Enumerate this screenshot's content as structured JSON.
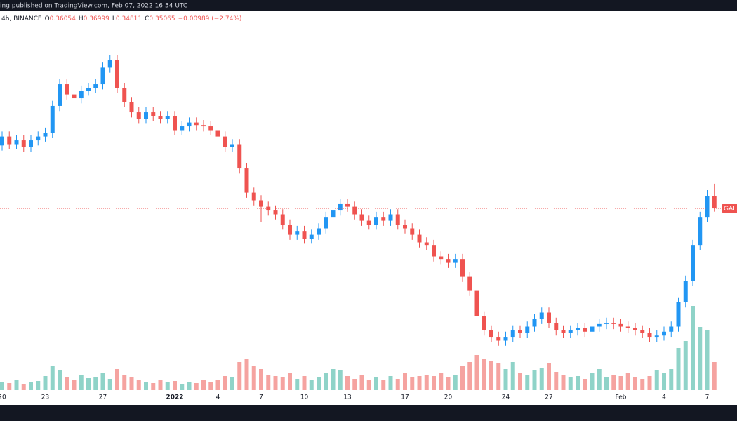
{
  "header": {
    "published": "ing published on TradingView.com, Feb 07, 2022 16:54 UTC",
    "interval_exchange": "4h, BINANCE",
    "change": "−0.00989 (−2.74%)"
  },
  "chart_data": {
    "type": "candlestick",
    "categories": [
      "20",
      null,
      null,
      null,
      null,
      null,
      "23",
      null,
      null,
      null,
      null,
      null,
      null,
      null,
      "27",
      null,
      null,
      null,
      null,
      null,
      null,
      null,
      null,
      null,
      "2022",
      null,
      null,
      null,
      null,
      null,
      "4",
      null,
      null,
      null,
      null,
      null,
      "7",
      null,
      null,
      null,
      null,
      null,
      "10",
      null,
      null,
      null,
      null,
      null,
      "13",
      null,
      null,
      null,
      null,
      null,
      null,
      null,
      "17",
      null,
      null,
      null,
      null,
      null,
      "20",
      null,
      null,
      null,
      null,
      null,
      null,
      null,
      "24",
      null,
      null,
      null,
      null,
      null,
      "27",
      null,
      null,
      null,
      null,
      null,
      null,
      null,
      null,
      null,
      "Feb",
      null,
      null,
      null,
      null,
      null,
      "4",
      null,
      null,
      null,
      null,
      null,
      "7",
      null
    ],
    "open": [
      0.4,
      0.407,
      0.401,
      0.404,
      0.399,
      0.404,
      0.407,
      0.41,
      0.431,
      0.448,
      0.44,
      0.437,
      0.443,
      0.445,
      0.448,
      0.461,
      0.467,
      0.445,
      0.434,
      0.426,
      0.421,
      0.426,
      0.423,
      0.421,
      0.423,
      0.412,
      0.415,
      0.418,
      0.416,
      0.415,
      0.412,
      0.407,
      0.399,
      0.401,
      0.382,
      0.363,
      0.357,
      0.352,
      0.349,
      0.346,
      0.338,
      0.33,
      0.333,
      0.327,
      0.33,
      0.335,
      0.344,
      0.349,
      0.354,
      0.352,
      0.346,
      0.341,
      0.338,
      0.344,
      0.341,
      0.346,
      0.338,
      0.335,
      0.33,
      0.324,
      0.322,
      0.313,
      0.311,
      0.308,
      0.311,
      0.297,
      0.286,
      0.266,
      0.255,
      0.25,
      0.247,
      0.25,
      0.255,
      0.253,
      0.258,
      0.264,
      0.269,
      0.261,
      0.255,
      0.253,
      0.255,
      0.257,
      0.254,
      0.258,
      0.26,
      0.261,
      0.26,
      0.258,
      0.257,
      0.255,
      0.253,
      0.25,
      0.251,
      0.254,
      0.258,
      0.277,
      0.294,
      0.322,
      0.344,
      0.36054
    ],
    "high": [
      0.411,
      0.411,
      0.408,
      0.408,
      0.408,
      0.411,
      0.414,
      0.435,
      0.452,
      0.452,
      0.444,
      0.447,
      0.449,
      0.452,
      0.465,
      0.471,
      0.471,
      0.449,
      0.438,
      0.43,
      0.43,
      0.43,
      0.427,
      0.427,
      0.427,
      0.419,
      0.422,
      0.422,
      0.42,
      0.419,
      0.416,
      0.411,
      0.405,
      0.405,
      0.386,
      0.367,
      0.361,
      0.356,
      0.353,
      0.35,
      0.342,
      0.337,
      0.337,
      0.334,
      0.339,
      0.348,
      0.353,
      0.358,
      0.358,
      0.356,
      0.35,
      0.345,
      0.348,
      0.348,
      0.35,
      0.35,
      0.342,
      0.339,
      0.334,
      0.328,
      0.326,
      0.317,
      0.315,
      0.315,
      0.315,
      0.301,
      0.29,
      0.27,
      0.259,
      0.254,
      0.254,
      0.259,
      0.259,
      0.262,
      0.268,
      0.273,
      0.273,
      0.265,
      0.259,
      0.259,
      0.261,
      0.261,
      0.262,
      0.264,
      0.265,
      0.265,
      0.264,
      0.262,
      0.261,
      0.259,
      0.257,
      0.255,
      0.258,
      0.262,
      0.281,
      0.298,
      0.326,
      0.348,
      0.365,
      0.36999
    ],
    "low": [
      0.396,
      0.397,
      0.397,
      0.395,
      0.395,
      0.4,
      0.403,
      0.406,
      0.427,
      0.436,
      0.433,
      0.433,
      0.439,
      0.441,
      0.444,
      0.457,
      0.441,
      0.43,
      0.422,
      0.417,
      0.417,
      0.419,
      0.417,
      0.417,
      0.408,
      0.408,
      0.411,
      0.412,
      0.411,
      0.408,
      0.403,
      0.395,
      0.395,
      0.378,
      0.359,
      0.353,
      0.34,
      0.345,
      0.342,
      0.334,
      0.326,
      0.326,
      0.323,
      0.323,
      0.326,
      0.331,
      0.34,
      0.345,
      0.348,
      0.342,
      0.337,
      0.334,
      0.334,
      0.337,
      0.337,
      0.334,
      0.331,
      0.326,
      0.32,
      0.318,
      0.309,
      0.307,
      0.304,
      0.304,
      0.293,
      0.282,
      0.262,
      0.251,
      0.246,
      0.243,
      0.243,
      0.246,
      0.249,
      0.249,
      0.254,
      0.26,
      0.257,
      0.251,
      0.249,
      0.249,
      0.251,
      0.25,
      0.25,
      0.254,
      0.256,
      0.256,
      0.254,
      0.253,
      0.251,
      0.249,
      0.246,
      0.246,
      0.247,
      0.25,
      0.254,
      0.273,
      0.29,
      0.318,
      0.34,
      0.34811
    ],
    "close": [
      0.407,
      0.401,
      0.404,
      0.399,
      0.404,
      0.407,
      0.41,
      0.431,
      0.448,
      0.44,
      0.437,
      0.443,
      0.445,
      0.448,
      0.461,
      0.467,
      0.445,
      0.434,
      0.426,
      0.421,
      0.426,
      0.423,
      0.421,
      0.423,
      0.412,
      0.415,
      0.418,
      0.416,
      0.415,
      0.412,
      0.407,
      0.399,
      0.401,
      0.382,
      0.363,
      0.357,
      0.352,
      0.349,
      0.346,
      0.338,
      0.33,
      0.333,
      0.327,
      0.33,
      0.335,
      0.344,
      0.349,
      0.354,
      0.352,
      0.346,
      0.341,
      0.338,
      0.344,
      0.341,
      0.346,
      0.338,
      0.335,
      0.33,
      0.324,
      0.322,
      0.313,
      0.311,
      0.308,
      0.311,
      0.297,
      0.286,
      0.266,
      0.255,
      0.25,
      0.247,
      0.25,
      0.255,
      0.253,
      0.258,
      0.264,
      0.269,
      0.261,
      0.255,
      0.253,
      0.255,
      0.257,
      0.254,
      0.258,
      0.26,
      0.261,
      0.26,
      0.258,
      0.257,
      0.255,
      0.253,
      0.25,
      0.251,
      0.254,
      0.258,
      0.277,
      0.294,
      0.322,
      0.344,
      0.36054,
      0.35065
    ],
    "volume": [
      12,
      10,
      14,
      9,
      11,
      13,
      20,
      35,
      28,
      18,
      15,
      22,
      17,
      19,
      25,
      16,
      30,
      22,
      18,
      14,
      12,
      10,
      15,
      11,
      13,
      9,
      12,
      10,
      14,
      11,
      15,
      20,
      18,
      40,
      45,
      35,
      30,
      22,
      20,
      18,
      25,
      16,
      20,
      14,
      18,
      24,
      30,
      28,
      20,
      16,
      22,
      15,
      18,
      14,
      20,
      16,
      24,
      18,
      20,
      22,
      20,
      25,
      18,
      22,
      35,
      40,
      50,
      45,
      42,
      38,
      30,
      40,
      25,
      22,
      28,
      32,
      38,
      26,
      22,
      18,
      20,
      16,
      25,
      30,
      18,
      22,
      20,
      24,
      18,
      16,
      20,
      28,
      25,
      30,
      60,
      70,
      120,
      90,
      85,
      40
    ],
    "ylim": [
      0.22,
      0.5
    ],
    "up_color": "#2196f3",
    "down_color": "#ef5350",
    "volume_up_color": "#8fd3c8",
    "volume_down_color": "#f5a3a0",
    "price_label": "GALA",
    "ohlc_prefixes": [
      "O",
      "H",
      "L",
      "C"
    ]
  }
}
